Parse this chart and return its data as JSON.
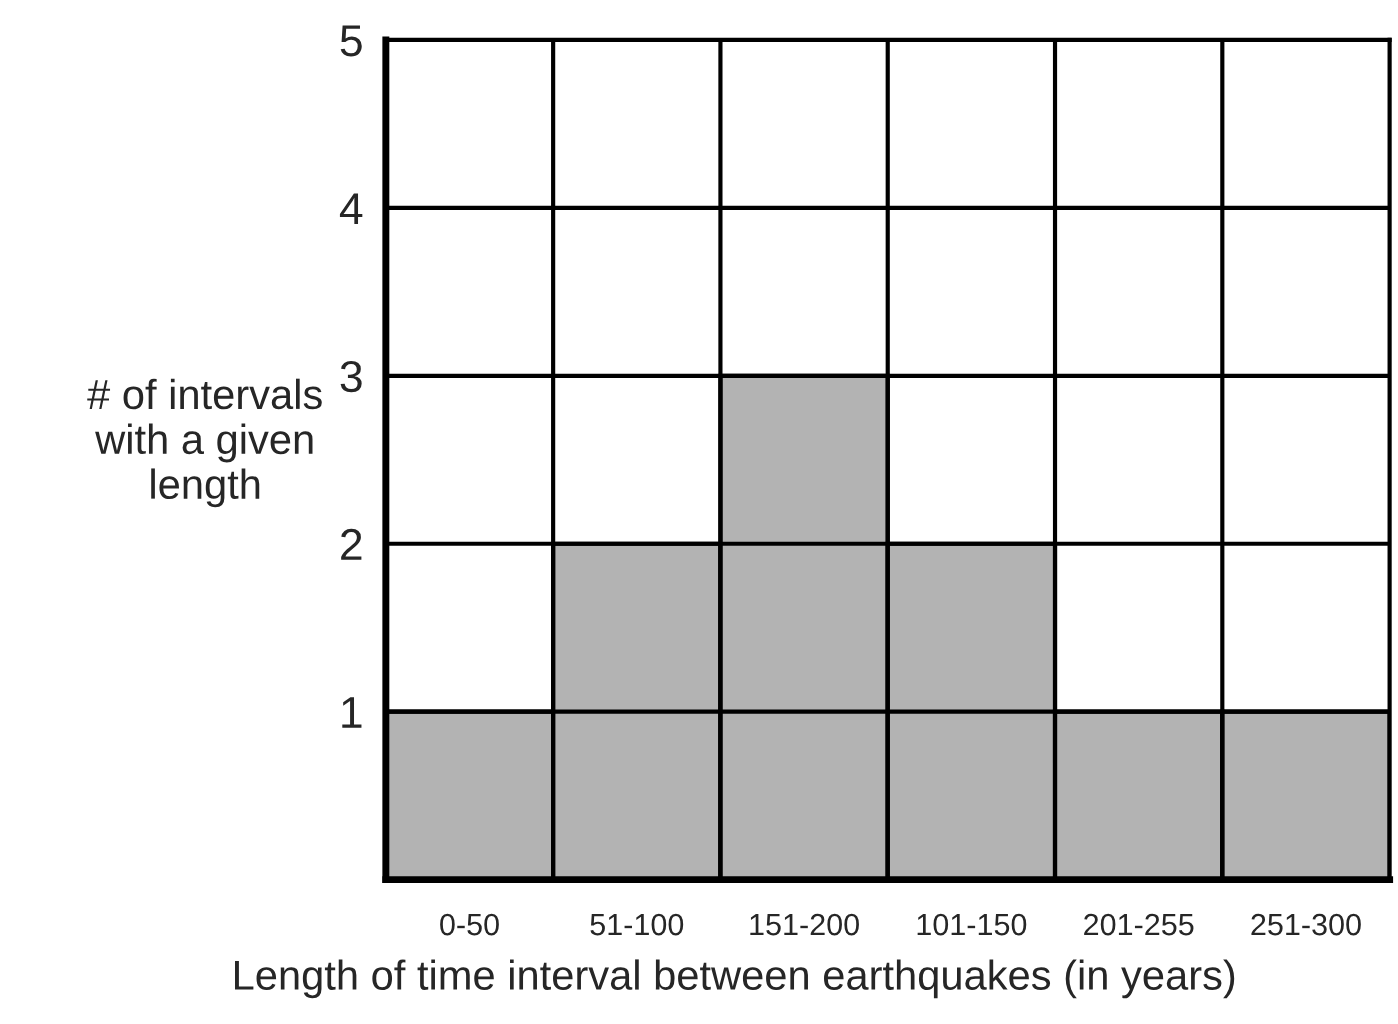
{
  "chart_data": {
    "type": "bar",
    "xlabel": "Length of time interval between earthquakes (in years)",
    "ylabel": "# of intervals\nwith a given\nlength",
    "categories": [
      "0-50",
      "51-100",
      "151-200",
      "101-150",
      "201-255",
      "251-300"
    ],
    "values": [
      1,
      2,
      3,
      2,
      1,
      1
    ],
    "color": "#b3b3b3",
    "ylim": [
      0,
      5
    ],
    "yticks": [
      1,
      2,
      3,
      4,
      5
    ],
    "grid": true
  }
}
